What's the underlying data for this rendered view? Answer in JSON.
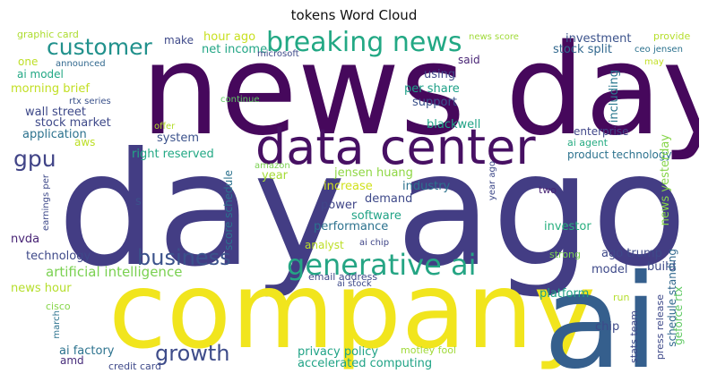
{
  "title": "tokens Word Cloud",
  "words": [
    {
      "text": "news day",
      "color": "#46085c"
    },
    {
      "text": "day ago",
      "color": "#433d84"
    },
    {
      "text": "company",
      "color": "#f1e51d"
    },
    {
      "text": "ai",
      "color": "#355f8d"
    },
    {
      "text": "data center",
      "color": "#471063"
    },
    {
      "text": "generative ai",
      "color": "#25a584"
    },
    {
      "text": "breaking news",
      "color": "#22a884"
    },
    {
      "text": "customer",
      "color": "#21918c"
    },
    {
      "text": "business",
      "color": "#3b528b"
    },
    {
      "text": "growth",
      "color": "#3e4c8a"
    },
    {
      "text": "gpu",
      "color": "#414487"
    },
    {
      "text": "artificial intelligence",
      "color": "#7ad151"
    },
    {
      "text": "graphic card",
      "color": "#addc30"
    },
    {
      "text": "make",
      "color": "#3e4989"
    },
    {
      "text": "hour ago",
      "color": "#c8e020"
    },
    {
      "text": "news score",
      "color": "#a0da39"
    },
    {
      "text": "provide",
      "color": "#b5de2b"
    },
    {
      "text": "investment",
      "color": "#3b528b"
    },
    {
      "text": "net income",
      "color": "#21a585"
    },
    {
      "text": "microsoft",
      "color": "#3e4989"
    },
    {
      "text": "stock split",
      "color": "#31688e"
    },
    {
      "text": "ceo jensen",
      "color": "#2c728e"
    },
    {
      "text": "one",
      "color": "#bddf26"
    },
    {
      "text": "announced",
      "color": "#31688e"
    },
    {
      "text": "said",
      "color": "#482475"
    },
    {
      "text": "may",
      "color": "#c2df23"
    },
    {
      "text": "ai model",
      "color": "#22a884"
    },
    {
      "text": "using",
      "color": "#3f4788"
    },
    {
      "text": "morning brief",
      "color": "#c2df23"
    },
    {
      "text": "per share",
      "color": "#1fa088"
    },
    {
      "text": "including",
      "color": "#2a788e"
    },
    {
      "text": "rtx series",
      "color": "#3b528b"
    },
    {
      "text": "continue",
      "color": "#5ec962"
    },
    {
      "text": "support",
      "color": "#3b528b"
    },
    {
      "text": "wall street",
      "color": "#3e4989"
    },
    {
      "text": "stock market",
      "color": "#3e4989"
    },
    {
      "text": "offer",
      "color": "#b5de2b"
    },
    {
      "text": "blackwell",
      "color": "#20a386"
    },
    {
      "text": "enterprise",
      "color": "#404688"
    },
    {
      "text": "application",
      "color": "#2c728e"
    },
    {
      "text": "system",
      "color": "#3b528b"
    },
    {
      "text": "aws",
      "color": "#bddf26"
    },
    {
      "text": "ai agent",
      "color": "#25ab82"
    },
    {
      "text": "product technology",
      "color": "#2c728e"
    },
    {
      "text": "right reserved",
      "color": "#22a884"
    },
    {
      "text": "amazon",
      "color": "#7ad151"
    },
    {
      "text": "year",
      "color": "#a5db36"
    },
    {
      "text": "jensen huang",
      "color": "#8fd744"
    },
    {
      "text": "increase",
      "color": "#d0e11c"
    },
    {
      "text": "industry",
      "color": "#2c728e"
    },
    {
      "text": "two",
      "color": "#482475"
    },
    {
      "text": "score schedule",
      "color": "#2c728e"
    },
    {
      "text": "earnings per",
      "color": "#3e4989"
    },
    {
      "text": "s",
      "color": "#3b528b"
    },
    {
      "text": "demand",
      "color": "#3e4989"
    },
    {
      "text": "year ago",
      "color": "#3e4989"
    },
    {
      "text": "power",
      "color": "#404688"
    },
    {
      "text": "software",
      "color": "#20a386"
    },
    {
      "text": "news yesterday",
      "color": "#86d549"
    },
    {
      "text": "performance",
      "color": "#2c728e"
    },
    {
      "text": "investor",
      "color": "#29af7f"
    },
    {
      "text": "nvda",
      "color": "#482475"
    },
    {
      "text": "analyst",
      "color": "#bddf26"
    },
    {
      "text": "ai chip",
      "color": "#404688"
    },
    {
      "text": "strong",
      "color": "#7ad151"
    },
    {
      "text": "technology",
      "color": "#3e4989"
    },
    {
      "text": "ago trump",
      "color": "#3e4989"
    },
    {
      "text": "build",
      "color": "#3e4989"
    },
    {
      "text": "schedule standing",
      "color": "#31688e"
    },
    {
      "text": "model",
      "color": "#3e4989"
    },
    {
      "text": "email address",
      "color": "#3e4989"
    },
    {
      "text": "news hour",
      "color": "#b5de2b"
    },
    {
      "text": "platform",
      "color": "#20a386"
    },
    {
      "text": "run",
      "color": "#b5de2b"
    },
    {
      "text": "press release",
      "color": "#3e4989"
    },
    {
      "text": "geforce rtx",
      "color": "#5ec962"
    },
    {
      "text": "cisco",
      "color": "#86d549"
    },
    {
      "text": "privacy policy",
      "color": "#20a386"
    },
    {
      "text": "stats team",
      "color": "#3e4989"
    },
    {
      "text": "march",
      "color": "#2c728e"
    },
    {
      "text": "chip",
      "color": "#3e4989"
    },
    {
      "text": "motley fool",
      "color": "#a0da39"
    },
    {
      "text": "ai factory",
      "color": "#2c728e"
    },
    {
      "text": "amd",
      "color": "#472c7a"
    },
    {
      "text": "credit card",
      "color": "#3e4989"
    },
    {
      "text": "accelerated computing",
      "color": "#20a386"
    },
    {
      "text": "ai stock",
      "color": "#3e4989"
    }
  ]
}
